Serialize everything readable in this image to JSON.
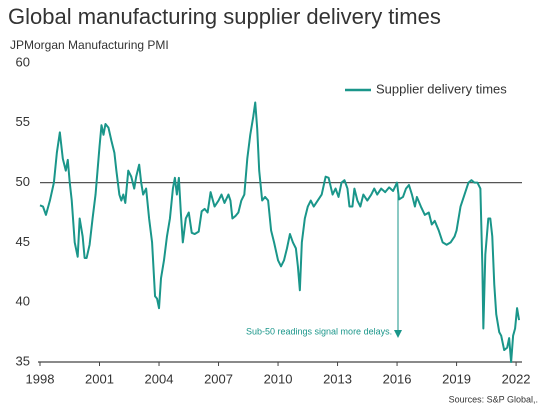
{
  "chart_data": {
    "type": "line",
    "title": "Global manufacturing supplier delivery times",
    "subtitle": "JPMorgan Manufacturing PMI",
    "annotation": "Sub-50 readings signal more delays.",
    "source": "Sources: S&P Global,.",
    "xlim": [
      1998,
      2022.5
    ],
    "xticks": [
      1998,
      2001,
      2004,
      2007,
      2010,
      2013,
      2016,
      2019,
      2022
    ],
    "ylim": [
      35,
      60
    ],
    "yticks": [
      35,
      40,
      45,
      50,
      55,
      60
    ],
    "reference_line": 50,
    "legend": "upper right",
    "x": [
      1998.0,
      1998.15,
      1998.3,
      1998.5,
      1998.7,
      1998.85,
      1999.0,
      1999.15,
      1999.3,
      1999.4,
      1999.5,
      1999.6,
      1999.75,
      1999.9,
      2000.0,
      2000.15,
      2000.25,
      2000.35,
      2000.5,
      2000.65,
      2000.8,
      2000.9,
      2001.0,
      2001.1,
      2001.2,
      2001.3,
      2001.45,
      2001.6,
      2001.75,
      2001.85,
      2002.0,
      2002.1,
      2002.2,
      2002.3,
      2002.45,
      2002.6,
      2002.75,
      2002.85,
      2003.0,
      2003.1,
      2003.2,
      2003.35,
      2003.5,
      2003.65,
      2003.8,
      2003.9,
      2004.0,
      2004.1,
      2004.25,
      2004.4,
      2004.55,
      2004.7,
      2004.8,
      2004.9,
      2005.0,
      2005.1,
      2005.2,
      2005.35,
      2005.5,
      2005.65,
      2005.8,
      2006.0,
      2006.15,
      2006.3,
      2006.45,
      2006.6,
      2006.8,
      2007.0,
      2007.15,
      2007.3,
      2007.5,
      2007.6,
      2007.7,
      2007.85,
      2008.0,
      2008.15,
      2008.3,
      2008.45,
      2008.6,
      2008.75,
      2008.85,
      2008.95,
      2009.05,
      2009.2,
      2009.35,
      2009.5,
      2009.65,
      2009.8,
      2010.0,
      2010.15,
      2010.3,
      2010.45,
      2010.6,
      2010.75,
      2010.9,
      2011.0,
      2011.1,
      2011.2,
      2011.35,
      2011.5,
      2011.65,
      2011.8,
      2012.0,
      2012.2,
      2012.4,
      2012.55,
      2012.75,
      2012.9,
      2013.05,
      2013.2,
      2013.35,
      2013.5,
      2013.6,
      2013.75,
      2013.85,
      2014.0,
      2014.15,
      2014.3,
      2014.5,
      2014.7,
      2014.85,
      2015.0,
      2015.2,
      2015.4,
      2015.6,
      2015.8,
      2016.0,
      2016.1,
      2016.3,
      2016.45,
      2016.6,
      2016.75,
      2016.9,
      2017.0,
      2017.2,
      2017.4,
      2017.6,
      2017.75,
      2017.9,
      2018.1,
      2018.3,
      2018.5,
      2018.7,
      2018.9,
      2019.0,
      2019.2,
      2019.4,
      2019.6,
      2019.75,
      2019.9,
      2020.05,
      2020.2,
      2020.3,
      2020.35,
      2020.45,
      2020.6,
      2020.7,
      2020.8,
      2020.9,
      2021.0,
      2021.15,
      2021.25,
      2021.4,
      2021.55,
      2021.65,
      2021.75,
      2021.85,
      2021.95,
      2022.05,
      2022.15
    ],
    "series": [
      {
        "name": "Supplier delivery times",
        "color": "#1a968a",
        "values": [
          48.1,
          48.0,
          47.3,
          48.5,
          50.0,
          52.5,
          54.2,
          52.0,
          51.0,
          51.9,
          50.0,
          48.5,
          45.0,
          43.8,
          47.0,
          45.5,
          43.7,
          43.7,
          44.8,
          47.0,
          49.0,
          51.0,
          53.0,
          54.8,
          54.0,
          54.9,
          54.6,
          53.5,
          52.5,
          51.0,
          49.0,
          48.5,
          49.0,
          48.3,
          51.0,
          50.5,
          49.5,
          50.5,
          51.5,
          50.0,
          49.0,
          49.5,
          47.0,
          45.0,
          40.5,
          40.3,
          39.5,
          42.0,
          43.5,
          45.5,
          47.0,
          49.5,
          50.4,
          49.0,
          50.4,
          47.5,
          45.0,
          47.0,
          47.5,
          45.8,
          45.7,
          45.9,
          47.6,
          47.8,
          47.5,
          49.2,
          48.0,
          48.5,
          49.0,
          48.3,
          49.0,
          48.5,
          47.0,
          47.2,
          47.5,
          48.5,
          49.0,
          52.0,
          54.0,
          55.5,
          56.7,
          54.5,
          51.0,
          48.5,
          48.8,
          48.5,
          46.0,
          45.0,
          43.5,
          43.0,
          43.5,
          44.5,
          45.7,
          45.0,
          44.5,
          43.0,
          41.0,
          45.0,
          47.0,
          48.0,
          48.5,
          48.0,
          48.5,
          49.0,
          50.5,
          50.4,
          49.0,
          49.5,
          48.8,
          50.0,
          50.2,
          49.5,
          48.0,
          48.0,
          49.5,
          48.5,
          48.0,
          49.0,
          48.5,
          49.0,
          49.5,
          49.0,
          49.5,
          49.2,
          49.6,
          49.3,
          50.0,
          48.6,
          48.8,
          49.5,
          49.8,
          49.0,
          48.0,
          48.8,
          48.0,
          47.3,
          47.5,
          46.5,
          46.8,
          46.0,
          45.0,
          44.8,
          45.0,
          45.5,
          46.0,
          48.0,
          49.0,
          50.0,
          50.2,
          50.0,
          50.0,
          49.5,
          43.0,
          37.8,
          44.0,
          47.0,
          47.0,
          45.5,
          41.5,
          39.0,
          37.5,
          37.2,
          36.0,
          36.2,
          37.0,
          35.0,
          37.2,
          37.8,
          39.5,
          38.5
        ]
      }
    ]
  }
}
